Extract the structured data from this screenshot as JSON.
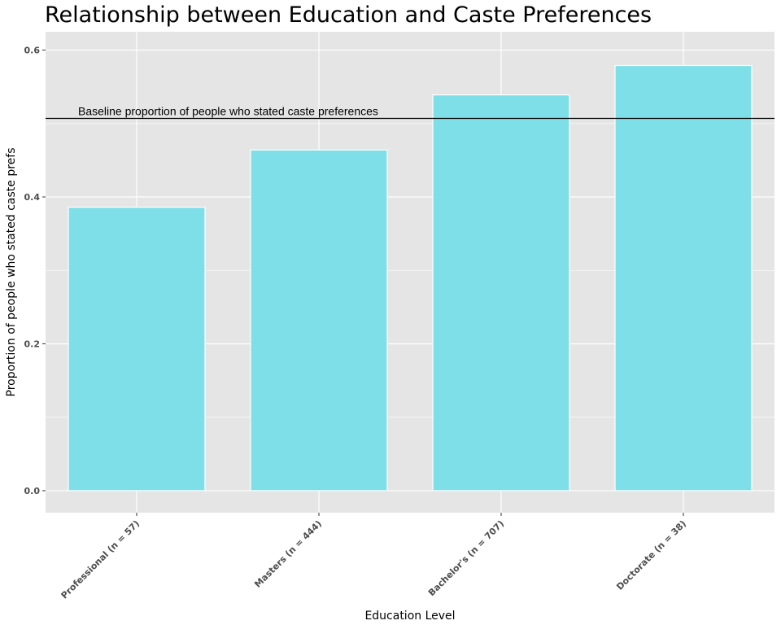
{
  "chart_data": {
    "type": "bar",
    "title": "Relationship between Education and Caste Preferences",
    "xlabel": "Education Level",
    "ylabel": "Proportion of people who stated caste prefs",
    "categories": [
      "Professional (n = 57)",
      "Masters (n = 444)",
      "Bachelor's (n = 707)",
      "Doctorate (n = 38)"
    ],
    "values": [
      0.386,
      0.464,
      0.539,
      0.579
    ],
    "ylim": [
      -0.03,
      0.625
    ],
    "yticks": [
      0.0,
      0.2,
      0.4,
      0.6
    ],
    "ytick_labels": [
      "0.0",
      "0.2",
      "0.4",
      "0.6"
    ],
    "baseline": {
      "value": 0.507,
      "label": "Baseline proportion of people who stated caste preferences"
    },
    "grid": true,
    "legend": "none",
    "colors": {
      "bar": "#7FDFE8",
      "bar_outline": "#ffffff",
      "panel": "#e5e5e5",
      "grid": "#ffffff",
      "baseline": "#000000"
    }
  }
}
